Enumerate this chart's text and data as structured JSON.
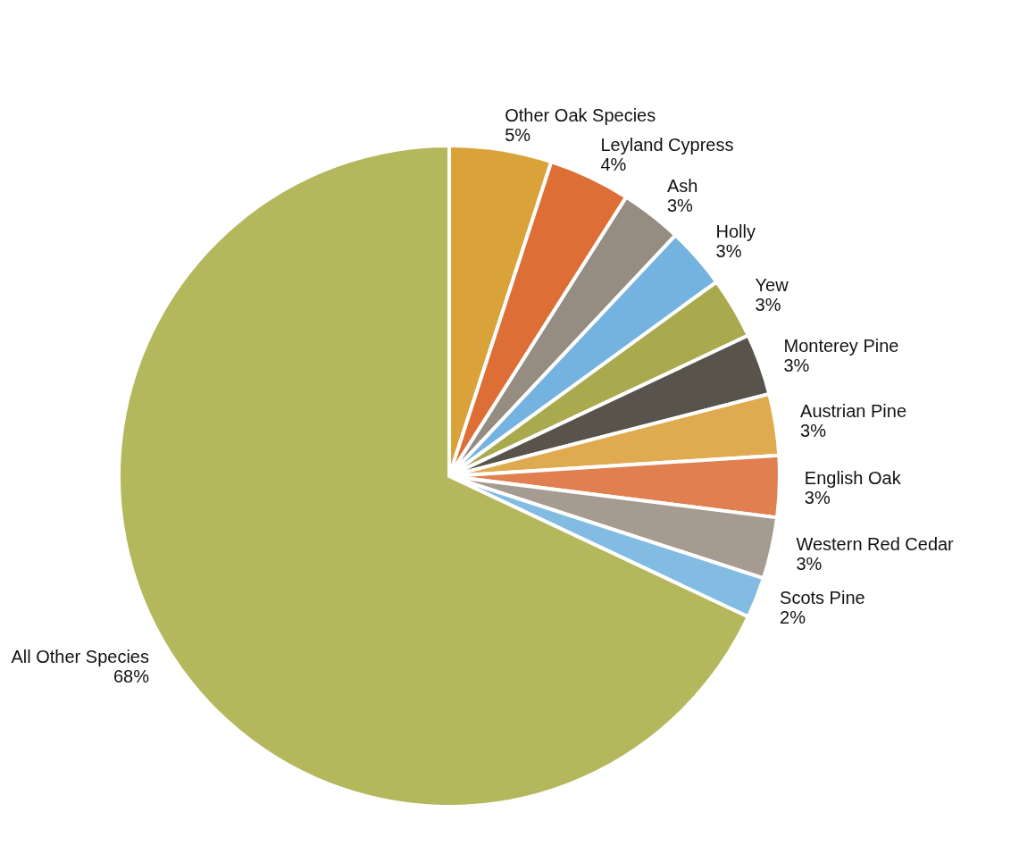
{
  "chart_data": {
    "type": "pie",
    "categories": [
      "Other Oak Species",
      "Leyland Cypress",
      "Ash",
      "Holly",
      "Yew",
      "Monterey Pine",
      "Austrian Pine",
      "English Oak",
      "Western Red Cedar",
      "Scots Pine",
      "All Other Species"
    ],
    "values": [
      5,
      4,
      3,
      3,
      3,
      3,
      3,
      3,
      3,
      2,
      68
    ],
    "colors": [
      "#d9a33a",
      "#dd6e36",
      "#958c82",
      "#74b3e0",
      "#a9aa4e",
      "#58534b",
      "#e0ab50",
      "#e07f50",
      "#a59b90",
      "#82bce3",
      "#b4b75b"
    ],
    "value_labels": [
      "5%",
      "4%",
      "3%",
      "3%",
      "3%",
      "3%",
      "3%",
      "3%",
      "3%",
      "2%",
      "68%"
    ]
  }
}
